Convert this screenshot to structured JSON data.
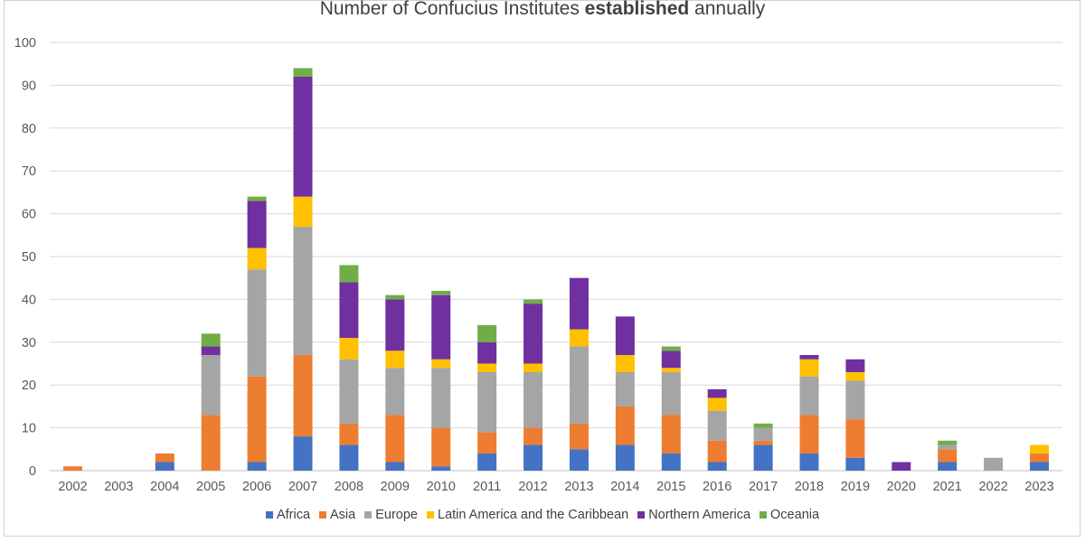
{
  "chart_data": {
    "type": "bar",
    "stacked": true,
    "title_prefix": "Number of Confucius Institutes ",
    "title_bold": "established",
    "title_suffix": " annually",
    "ylim": [
      0,
      100
    ],
    "yticks": [
      0,
      10,
      20,
      30,
      40,
      50,
      60,
      70,
      80,
      90,
      100
    ],
    "grid": true,
    "legend_position": "bottom",
    "categories": [
      "2002",
      "2003",
      "2004",
      "2005",
      "2006",
      "2007",
      "2008",
      "2009",
      "2010",
      "2011",
      "2012",
      "2013",
      "2014",
      "2015",
      "2016",
      "2017",
      "2018",
      "2019",
      "2020",
      "2021",
      "2022",
      "2023"
    ],
    "series": [
      {
        "name": "Africa",
        "color": "#4472C4",
        "values": [
          0,
          0,
          2,
          0,
          2,
          8,
          6,
          2,
          1,
          4,
          6,
          5,
          6,
          4,
          2,
          6,
          4,
          3,
          0,
          2,
          0,
          2
        ]
      },
      {
        "name": "Asia",
        "color": "#ED7D31",
        "values": [
          1,
          0,
          2,
          13,
          20,
          19,
          5,
          11,
          9,
          5,
          4,
          6,
          9,
          9,
          5,
          1,
          9,
          9,
          0,
          3,
          0,
          2
        ]
      },
      {
        "name": "Europe",
        "color": "#A5A5A5",
        "values": [
          0,
          0,
          0,
          14,
          25,
          30,
          15,
          11,
          14,
          14,
          13,
          18,
          8,
          10,
          7,
          3,
          9,
          9,
          0,
          1,
          3,
          0
        ]
      },
      {
        "name": "Latin America and the Caribbean",
        "color": "#FFC000",
        "values": [
          0,
          0,
          0,
          0,
          5,
          7,
          5,
          4,
          2,
          2,
          2,
          4,
          4,
          1,
          3,
          0,
          4,
          2,
          0,
          0,
          0,
          2
        ]
      },
      {
        "name": "Northern America",
        "color": "#7030A0",
        "values": [
          0,
          0,
          0,
          2,
          11,
          28,
          13,
          12,
          15,
          5,
          14,
          12,
          9,
          4,
          2,
          0,
          1,
          3,
          2,
          0,
          0,
          0
        ]
      },
      {
        "name": "Oceania",
        "color": "#70AD47",
        "values": [
          0,
          0,
          0,
          3,
          1,
          2,
          4,
          1,
          1,
          4,
          1,
          0,
          0,
          1,
          0,
          1,
          0,
          0,
          0,
          1,
          0,
          0
        ]
      }
    ]
  }
}
